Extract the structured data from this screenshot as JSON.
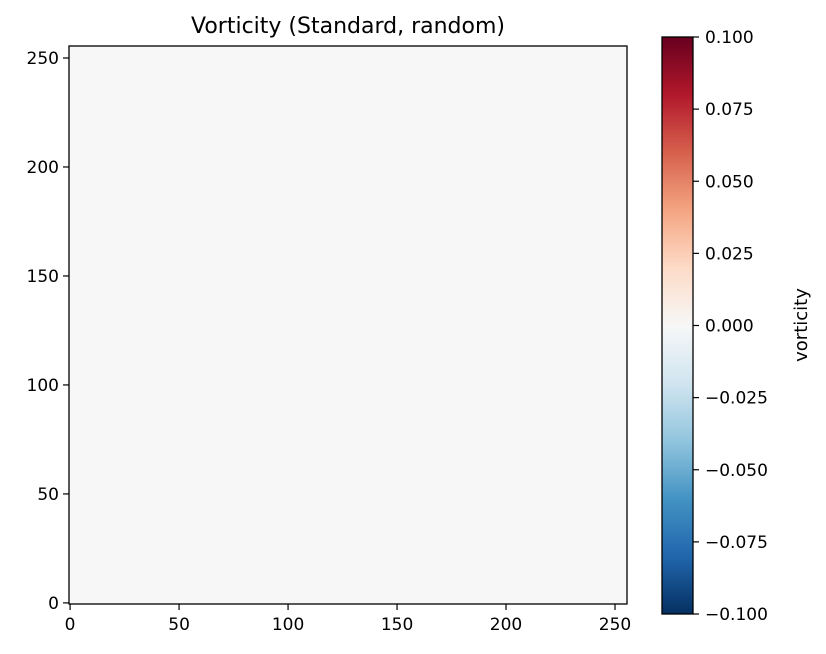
{
  "chart_data": {
    "type": "heatmap",
    "title": "Vorticity (Standard, random)",
    "xlabel": "",
    "ylabel": "",
    "xlim": [
      -0.5,
      255.5
    ],
    "ylim": [
      -0.5,
      255.5
    ],
    "x_ticks": [
      0,
      50,
      100,
      150,
      200,
      250
    ],
    "y_ticks": [
      0,
      50,
      100,
      150,
      200,
      250
    ],
    "x_tick_labels": [
      "0",
      "50",
      "100",
      "150",
      "200",
      "250"
    ],
    "y_tick_labels": [
      "0",
      "50",
      "100",
      "150",
      "200",
      "250"
    ],
    "field_value": 0.0,
    "grid": false,
    "colorbar": {
      "label": "vorticity",
      "colormap": "RdBu_r",
      "range": [
        -0.1,
        0.1
      ],
      "ticks": [
        -0.1,
        -0.075,
        -0.05,
        -0.025,
        0.0,
        0.025,
        0.05,
        0.075,
        0.1
      ],
      "tick_labels": [
        "−0.100",
        "−0.075",
        "−0.050",
        "−0.025",
        "0.000",
        "0.025",
        "0.050",
        "0.075",
        "0.100"
      ],
      "stops": [
        "#053061",
        "#2166ac",
        "#4393c3",
        "#92c5de",
        "#d1e5f0",
        "#f7f7f7",
        "#fddbc7",
        "#f4a582",
        "#d6604d",
        "#b2182b",
        "#67001f"
      ]
    }
  }
}
